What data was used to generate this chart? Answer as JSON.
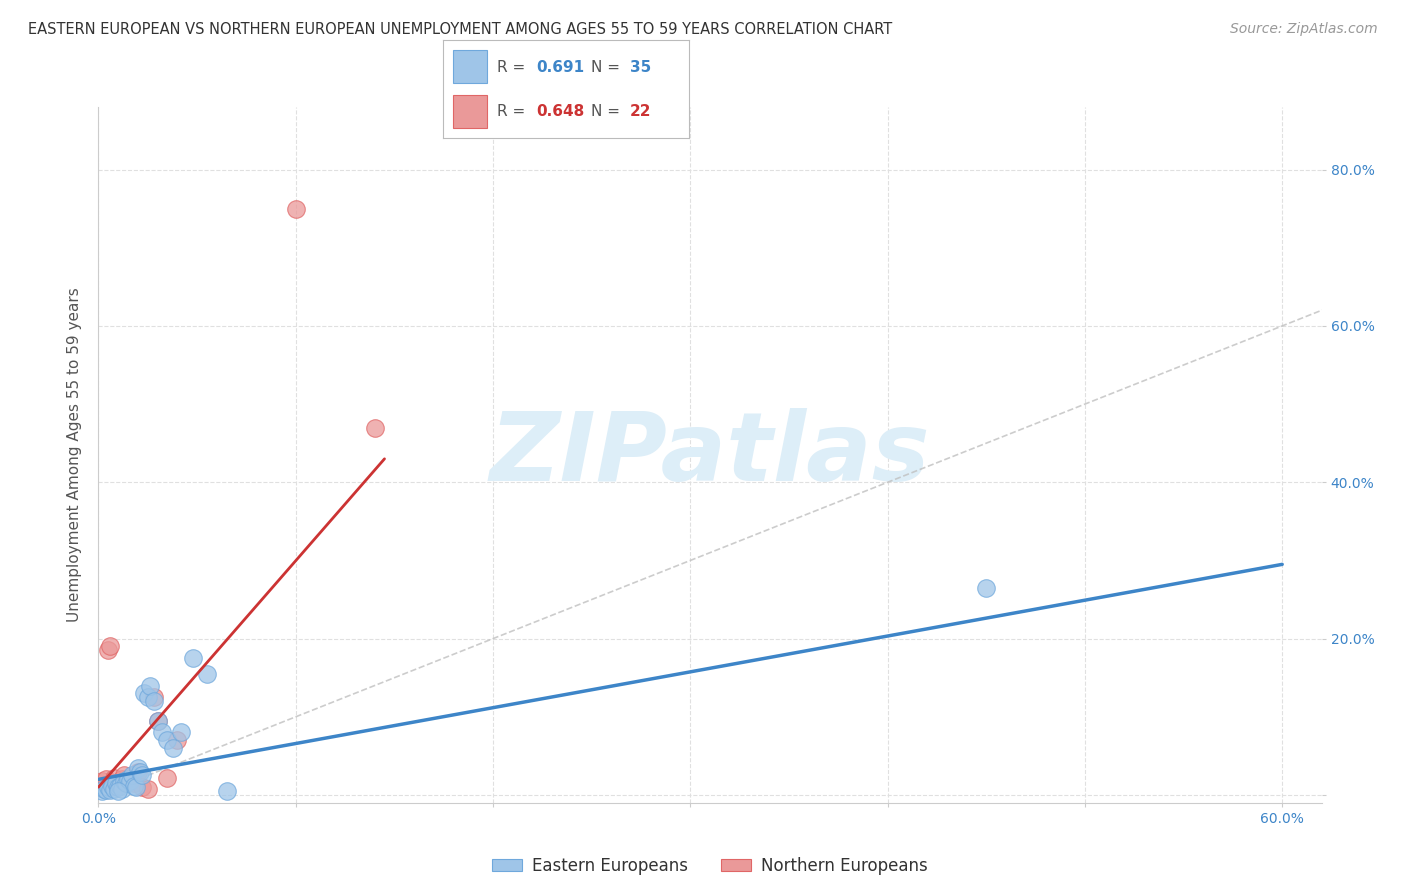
{
  "title": "EASTERN EUROPEAN VS NORTHERN EUROPEAN UNEMPLOYMENT AMONG AGES 55 TO 59 YEARS CORRELATION CHART",
  "source": "Source: ZipAtlas.com",
  "ylabel": "Unemployment Among Ages 55 to 59 years",
  "xlim": [
    0.0,
    0.62
  ],
  "ylim": [
    -0.01,
    0.88
  ],
  "legend_blue_r": "0.691",
  "legend_blue_n": "35",
  "legend_pink_r": "0.648",
  "legend_pink_n": "22",
  "blue_color": "#9fc5e8",
  "blue_edge_color": "#6fa8dc",
  "pink_color": "#ea9999",
  "pink_edge_color": "#e06666",
  "blue_line_color": "#3d85c8",
  "pink_line_color": "#cc3333",
  "diag_color": "#c0c0c0",
  "watermark_color": "#ddeef8",
  "watermark_text": "ZIPatlas",
  "blue_x": [
    0.002,
    0.003,
    0.004,
    0.005,
    0.006,
    0.007,
    0.008,
    0.009,
    0.01,
    0.011,
    0.012,
    0.013,
    0.014,
    0.015,
    0.016,
    0.017,
    0.018,
    0.019,
    0.02,
    0.021,
    0.022,
    0.023,
    0.025,
    0.026,
    0.028,
    0.03,
    0.032,
    0.035,
    0.038,
    0.042,
    0.048,
    0.055,
    0.065,
    0.45,
    0.01
  ],
  "blue_y": [
    0.005,
    0.008,
    0.006,
    0.01,
    0.007,
    0.012,
    0.008,
    0.015,
    0.01,
    0.012,
    0.008,
    0.018,
    0.015,
    0.02,
    0.018,
    0.025,
    0.012,
    0.01,
    0.035,
    0.03,
    0.025,
    0.13,
    0.125,
    0.14,
    0.12,
    0.095,
    0.08,
    0.07,
    0.06,
    0.08,
    0.175,
    0.155,
    0.005,
    0.265,
    0.005
  ],
  "pink_x": [
    0.002,
    0.004,
    0.005,
    0.006,
    0.007,
    0.008,
    0.009,
    0.01,
    0.012,
    0.013,
    0.015,
    0.016,
    0.018,
    0.02,
    0.022,
    0.025,
    0.028,
    0.03,
    0.035,
    0.04,
    0.1,
    0.14
  ],
  "pink_y": [
    0.018,
    0.02,
    0.185,
    0.19,
    0.015,
    0.022,
    0.012,
    0.015,
    0.02,
    0.025,
    0.018,
    0.022,
    0.015,
    0.03,
    0.01,
    0.008,
    0.125,
    0.095,
    0.022,
    0.07,
    0.75,
    0.47
  ],
  "blue_line_x0": 0.0,
  "blue_line_y0": 0.02,
  "blue_line_x1": 0.6,
  "blue_line_y1": 0.295,
  "pink_line_x0": 0.0,
  "pink_line_y0": 0.01,
  "pink_line_x1": 0.145,
  "pink_line_y1": 0.43,
  "marker_size": 160,
  "title_fontsize": 10.5,
  "axis_label_fontsize": 11,
  "tick_fontsize": 10,
  "source_fontsize": 10
}
